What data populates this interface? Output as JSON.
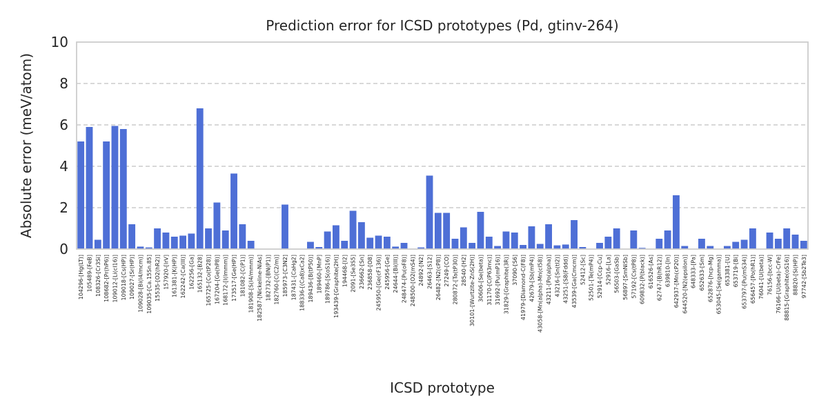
{
  "chart_data": {
    "type": "bar",
    "title": "Prediction error for ICSD prototypes (Pd, gtinv-264)",
    "xlabel": "ICSD prototype",
    "ylabel": "Absolute error (meV/atom)",
    "ylim": [
      0,
      10
    ],
    "yticks": [
      0,
      2,
      4,
      6,
      8,
      10
    ],
    "grid": "y-dashed",
    "bar_color": "#4e6fd6",
    "categories": [
      "104296-[Hg(LT)]",
      "105489-[FeB]",
      "108326-[Cr3Si]",
      "108682-[Pr(hP6)]",
      "109012-[Li(cI16)]",
      "109018-[Cs(HP)]",
      "109027-[Sr(HP)]",
      "109028-[Bi(I4/mcm)]",
      "109035-[Ca.15Sn.85]",
      "15535-[O2(hR2)]",
      "157920-[IrV]",
      "161381-[K(HP)]",
      "162242-[Ca(III)]",
      "162256-[Ga]",
      "165132-[B28]",
      "165725-[Co(tP28)]",
      "167204-[Ge(hP8)]",
      "168172-[I(Immm)]",
      "173517-[Ge(HP)]",
      "181082-[C(P1)]",
      "181908-[S(I4/mmm)]",
      "182587-[Nickeline-NiAs]",
      "182732-[BN(P1)]",
      "182760-[C(C2/m)]",
      "185973-[C3N2]",
      "187431-[CaHg2]",
      "188336-[(Ca8)xCa2]",
      "189436-[B(tP50)]",
      "189460-[MnP]",
      "189786-[S(oS16)]",
      "193439-[Graphite(2H)]",
      "194468-[I2]",
      "2091-[Se3S5]",
      "236662-[Sn]",
      "236858-[O8]",
      "245950-[Ge(cF136)]",
      "245956-[Ge]",
      "24644-[Bi(III)]",
      "248474-[Pu(oF8)]",
      "248500-[O2(mS4)]",
      "24892-[N2]",
      "26463-[S12]",
      "26482-[N2(cP8)]",
      "27249-[CO]",
      "280872-[Ta(tP30)]",
      "28540-[H2]",
      "30101-[Wurtzite-ZnS(2H)]",
      "30606-[Se(beta)]",
      "31170-[C(P63mc)]",
      "31692-[Pu(mP16)]",
      "31829-[Graphite(3R)]",
      "37090-[S6]",
      "41979-[Diamond-C(F8)]",
      "42679-[Sb(mP4)]",
      "43058-[Mn(alpha)-Mn(cI58)]",
      "43211-[Po(alpha)]",
      "43216-[Sn(tI2)]",
      "43251-[S8(Fddd)]",
      "43539-[Ga(Cmcm)]",
      "52412-[Sc]",
      "52501-[Te(mP4)]",
      "52914-[Ccp-Cu]",
      "52916-[La]",
      "56503-[GaSb]",
      "56897-[SmNiSb]",
      "57192-[Cs(tP8)]",
      "609832-[P(black)]",
      "616526-[As]",
      "62747-[B(hR12)]",
      "639810-[In]",
      "642937-[Mn(cP20)]",
      "644520-[N2(epsilon)]",
      "648333-[Pa]",
      "652633-[Sm]",
      "652876-[hcp-Mg]",
      "653045-[Se(gamma)]",
      "653381-[U]",
      "653719-[Bi]",
      "653797-[Pu(mS34)]",
      "656457-[Po(hR1)]",
      "76041-[U(beta)]",
      "76156-[bcc-W]",
      "76166-[U(beta)-CrFe]",
      "88815-[Graphite(oS16)]",
      "88820-[Si(HP)]",
      "97742-[Sb2Te3]"
    ],
    "values": [
      5.2,
      5.9,
      0.45,
      5.2,
      5.95,
      5.8,
      1.2,
      0.12,
      0.08,
      1.0,
      0.8,
      0.6,
      0.65,
      0.75,
      6.8,
      1.0,
      2.25,
      0.9,
      3.65,
      1.2,
      0.4,
      0.0,
      0.0,
      0.0,
      2.15,
      0.0,
      0.0,
      0.35,
      0.1,
      0.85,
      1.15,
      0.4,
      1.85,
      1.3,
      0.55,
      0.65,
      0.6,
      0.12,
      0.3,
      0.02,
      0.08,
      3.55,
      1.75,
      1.75,
      0.5,
      1.05,
      0.3,
      1.8,
      0.6,
      0.15,
      0.85,
      0.8,
      0.2,
      1.1,
      0.25,
      1.2,
      0.18,
      0.22,
      1.4,
      0.1,
      0.0,
      0.3,
      0.6,
      1.0,
      0.0,
      0.9,
      0.06,
      0.0,
      0.5,
      0.9,
      2.6,
      0.15,
      0.0,
      0.5,
      0.15,
      0.0,
      0.15,
      0.35,
      0.45,
      1.0,
      0.0,
      0.8,
      0.5,
      1.0,
      0.7,
      0.4
    ]
  }
}
